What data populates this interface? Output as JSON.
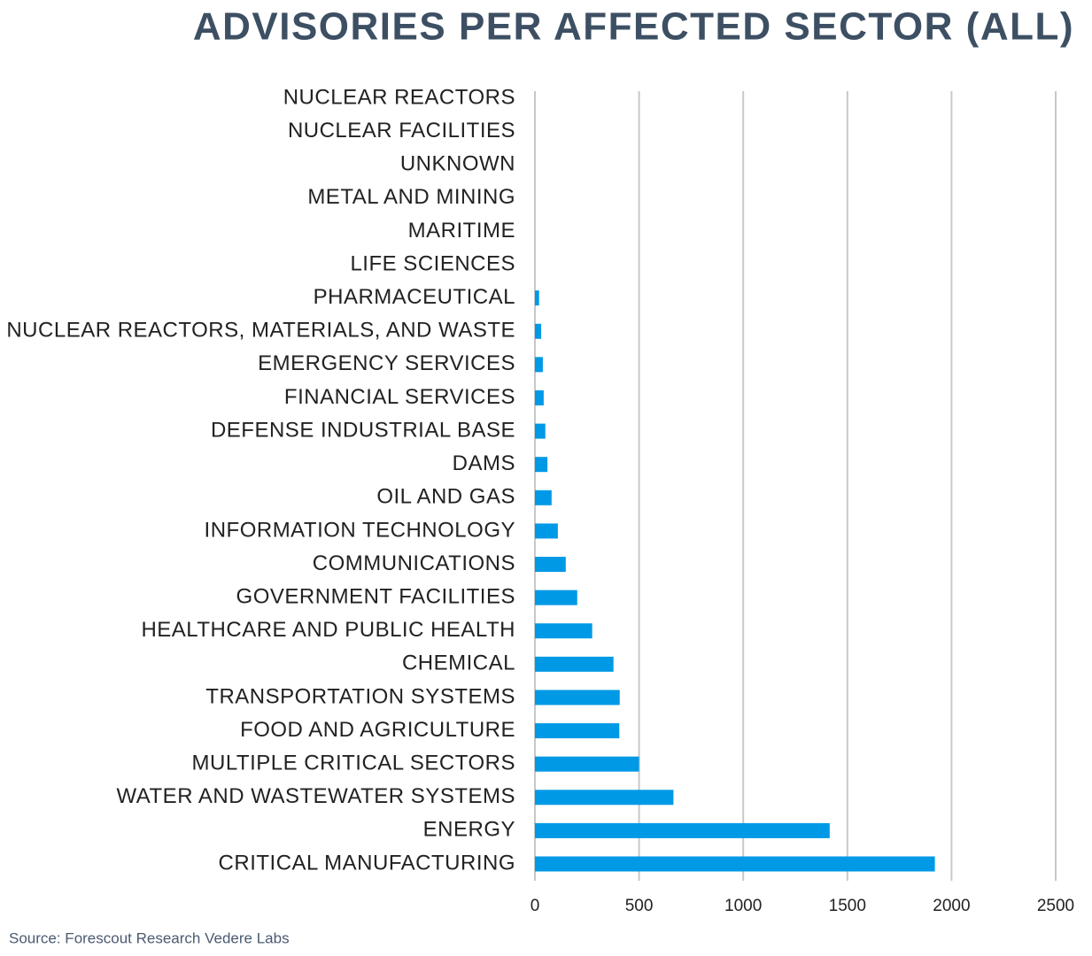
{
  "chart_data": {
    "type": "bar",
    "orientation": "horizontal",
    "title": "ADVISORIES PER AFFECTED SECTOR (ALL)",
    "source": "Source: Forescout Research Vedere Labs",
    "categories": [
      "NUCLEAR REACTORS",
      "NUCLEAR FACILITIES",
      "UNKNOWN",
      "METAL AND MINING",
      "MARITIME",
      "LIFE SCIENCES",
      "PHARMACEUTICAL",
      "NUCLEAR REACTORS, MATERIALS, AND WASTE",
      "EMERGENCY SERVICES",
      "FINANCIAL SERVICES",
      "DEFENSE INDUSTRIAL BASE",
      "DAMS",
      "OIL AND GAS",
      "INFORMATION TECHNOLOGY",
      "COMMUNICATIONS",
      "GOVERNMENT FACILITIES",
      "HEALTHCARE AND PUBLIC HEALTH",
      "CHEMICAL",
      "TRANSPORTATION SYSTEMS",
      "FOOD AND AGRICULTURE",
      "MULTIPLE CRITICAL SECTORS",
      "WATER AND WASTEWATER SYSTEMS",
      "ENERGY",
      "CRITICAL MANUFACTURING"
    ],
    "values": [
      0,
      0,
      0,
      0,
      0,
      0,
      20,
      30,
      38,
      42,
      50,
      60,
      80,
      110,
      148,
      203,
      275,
      377,
      407,
      405,
      500,
      665,
      1415,
      1920
    ],
    "color": "#0099e6",
    "xlim": [
      0,
      2500
    ],
    "xticks": [
      0,
      500,
      1000,
      1500,
      2000,
      2500
    ],
    "grid": true
  }
}
